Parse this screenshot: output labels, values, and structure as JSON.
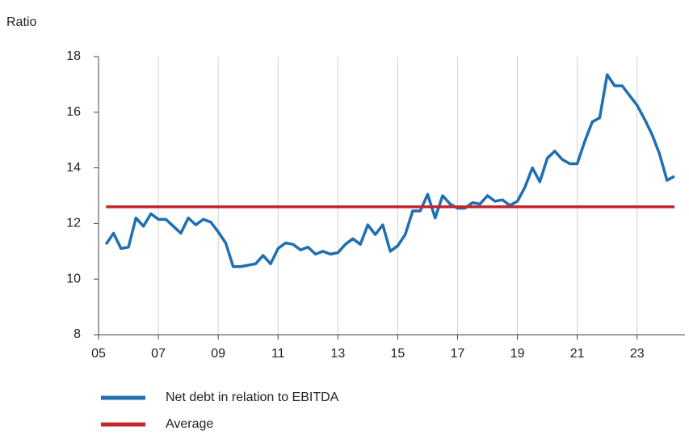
{
  "chart_data": {
    "type": "line",
    "y_axis_label": "Ratio",
    "xlim": [
      2005,
      2024.6
    ],
    "xticks": [
      {
        "value": 2005,
        "label": "05"
      },
      {
        "value": 2007,
        "label": "07"
      },
      {
        "value": 2009,
        "label": "09"
      },
      {
        "value": 2011,
        "label": "11"
      },
      {
        "value": 2013,
        "label": "13"
      },
      {
        "value": 2015,
        "label": "15"
      },
      {
        "value": 2017,
        "label": "17"
      },
      {
        "value": 2019,
        "label": "19"
      },
      {
        "value": 2021,
        "label": "21"
      },
      {
        "value": 2023,
        "label": "23"
      }
    ],
    "ylim": [
      8,
      18
    ],
    "yticks": [
      8,
      10,
      12,
      14,
      16,
      18
    ],
    "grid": "x",
    "legend": "bottom",
    "series": [
      {
        "name": "Net debt in relation to EBITDA",
        "color": "#1f6fb2",
        "x": [
          2005.25,
          2005.5,
          2005.75,
          2006,
          2006.25,
          2006.5,
          2006.75,
          2007,
          2007.25,
          2007.5,
          2007.75,
          2008,
          2008.25,
          2008.5,
          2008.75,
          2009,
          2009.25,
          2009.5,
          2009.75,
          2010,
          2010.25,
          2010.5,
          2010.75,
          2011,
          2011.25,
          2011.5,
          2011.75,
          2012,
          2012.25,
          2012.5,
          2012.75,
          2013,
          2013.25,
          2013.5,
          2013.75,
          2014,
          2014.25,
          2014.5,
          2014.75,
          2015,
          2015.25,
          2015.5,
          2015.75,
          2016,
          2016.25,
          2016.5,
          2016.75,
          2017,
          2017.25,
          2017.5,
          2017.75,
          2018,
          2018.25,
          2018.5,
          2018.75,
          2019,
          2019.25,
          2019.5,
          2019.75,
          2020,
          2020.25,
          2020.5,
          2020.75,
          2021,
          2021.25,
          2021.5,
          2021.75,
          2022,
          2022.25,
          2022.5,
          2022.75,
          2023,
          2023.25,
          2023.5,
          2023.75,
          2024,
          2024.25
        ],
        "values": [
          11.25,
          11.65,
          11.1,
          11.15,
          12.2,
          11.9,
          12.35,
          12.15,
          12.15,
          11.9,
          11.65,
          12.2,
          11.95,
          12.15,
          12.05,
          11.7,
          11.3,
          10.45,
          10.45,
          10.5,
          10.55,
          10.85,
          10.55,
          11.1,
          11.3,
          11.25,
          11.05,
          11.15,
          10.9,
          11.0,
          10.9,
          10.95,
          11.25,
          11.45,
          11.25,
          11.95,
          11.6,
          11.95,
          11.0,
          11.2,
          11.6,
          12.45,
          12.45,
          13.05,
          12.2,
          13.0,
          12.7,
          12.55,
          12.55,
          12.75,
          12.7,
          13.0,
          12.8,
          12.85,
          12.65,
          12.8,
          13.3,
          14.0,
          13.5,
          14.35,
          14.6,
          14.3,
          14.15,
          14.15,
          14.95,
          15.65,
          15.8,
          17.35,
          16.95,
          16.95,
          16.6,
          16.25,
          15.75,
          15.2,
          14.5,
          13.55,
          13.7
        ]
      },
      {
        "name": "Average",
        "color": "#c0282d",
        "x": [
          2005.25,
          2024.25
        ],
        "values": [
          12.6,
          12.6
        ]
      }
    ]
  }
}
